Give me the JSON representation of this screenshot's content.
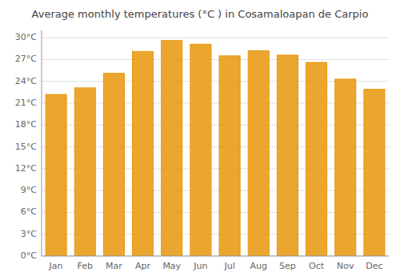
{
  "chart_data": {
    "type": "bar",
    "title": "Average monthly temperatures (°C ) in Cosamaloapan de Carpio",
    "categories": [
      "Jan",
      "Feb",
      "Mar",
      "Apr",
      "May",
      "Jun",
      "Jul",
      "Aug",
      "Sep",
      "Oct",
      "Nov",
      "Dec"
    ],
    "values": [
      22.2,
      23.1,
      25.1,
      28.1,
      29.6,
      29.1,
      27.5,
      28.2,
      27.6,
      26.6,
      24.3,
      22.9
    ],
    "color": "#E8960A",
    "ylim": [
      0,
      31
    ],
    "yticks": [
      {
        "value": 0,
        "label": "0°C"
      },
      {
        "value": 3,
        "label": "3°C"
      },
      {
        "value": 6,
        "label": "6°C"
      },
      {
        "value": 9,
        "label": "9°C"
      },
      {
        "value": 12,
        "label": "12°C"
      },
      {
        "value": 15,
        "label": "15°C"
      },
      {
        "value": 18,
        "label": "18°C"
      },
      {
        "value": 21,
        "label": "21°C"
      },
      {
        "value": 24,
        "label": "24°C"
      },
      {
        "value": 27,
        "label": "27°C"
      },
      {
        "value": 30,
        "label": "30°C"
      }
    ],
    "grid": true
  }
}
